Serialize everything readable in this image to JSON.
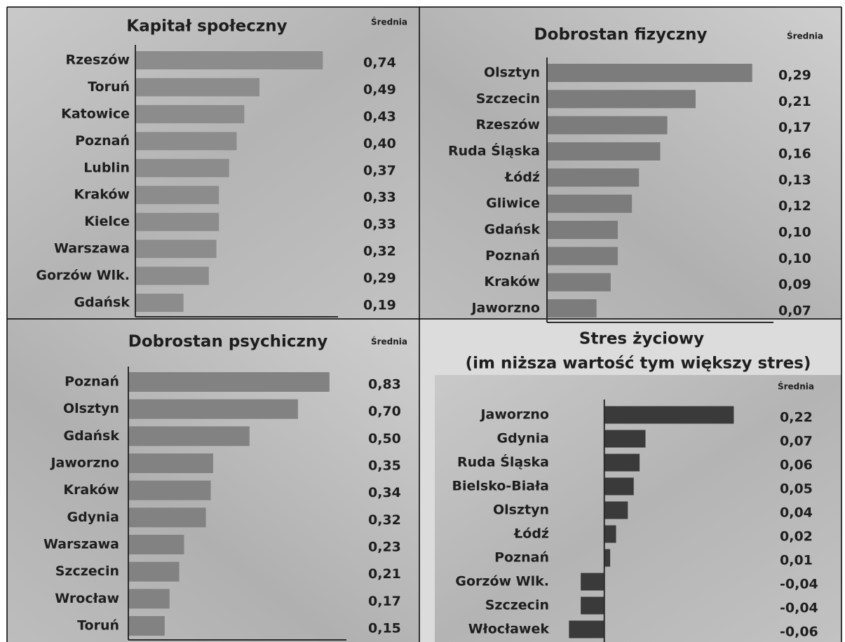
{
  "chart_data": [
    {
      "type": "bar",
      "title": "Kapitał społeczny",
      "value_header": "Średnia",
      "color": "#8c8c8c",
      "categories": [
        "Rzeszów",
        "Toruń",
        "Katowice",
        "Poznań",
        "Lublin",
        "Kraków",
        "Kielce",
        "Warszawa",
        "Gorzów Wlk.",
        "Gdańsk"
      ],
      "values": [
        0.74,
        0.49,
        0.43,
        0.4,
        0.37,
        0.33,
        0.33,
        0.32,
        0.29,
        0.19
      ],
      "value_labels": [
        "0,74",
        "0,49",
        "0,43",
        "0,40",
        "0,37",
        "0,33",
        "0,33",
        "0,32",
        "0,29",
        "0,19"
      ],
      "xlim": [
        0,
        0.8
      ]
    },
    {
      "type": "bar",
      "title": "Dobrostan fizyczny",
      "value_header": "Średnia",
      "color": "#7c7c7c",
      "categories": [
        "Olsztyn",
        "Szczecin",
        "Rzeszów",
        "Ruda Śląska",
        "Łódź",
        "Gliwice",
        "Gdańsk",
        "Poznań",
        "Kraków",
        "Jaworzno"
      ],
      "values": [
        0.29,
        0.21,
        0.17,
        0.16,
        0.13,
        0.12,
        0.1,
        0.1,
        0.09,
        0.07
      ],
      "value_labels": [
        "0,29",
        "0,21",
        "0,17",
        "0,16",
        "0,13",
        "0,12",
        "0,10",
        "0,10",
        "0,09",
        "0,07"
      ],
      "xlim": [
        0,
        0.32
      ]
    },
    {
      "type": "bar",
      "title": "Dobrostan psychiczny",
      "value_header": "Średnia",
      "color": "#828282",
      "categories": [
        "Poznań",
        "Olsztyn",
        "Gdańsk",
        "Jaworzno",
        "Kraków",
        "Gdynia",
        "Warszawa",
        "Szczecin",
        "Wrocław",
        "Toruń"
      ],
      "values": [
        0.83,
        0.7,
        0.5,
        0.35,
        0.34,
        0.32,
        0.23,
        0.21,
        0.17,
        0.15
      ],
      "value_labels": [
        "0,83",
        "0,70",
        "0,50",
        "0,35",
        "0,34",
        "0,32",
        "0,23",
        "0,21",
        "0,17",
        "0,15"
      ],
      "xlim": [
        0,
        0.9
      ]
    },
    {
      "type": "bar",
      "title": "Stres życiowy",
      "subtitle": "(im niższa wartość tym większy stres)",
      "value_header": "Średnia",
      "color": "#3a3a3a",
      "categories": [
        "Jaworzno",
        "Gdynia",
        "Ruda Śląska",
        "Bielsko-Biała",
        "Olsztyn",
        "Łódź",
        "Poznań",
        "Gorzów Wlk.",
        "Szczecin",
        "Włocławek"
      ],
      "values": [
        0.22,
        0.07,
        0.06,
        0.05,
        0.04,
        0.02,
        0.01,
        -0.04,
        -0.04,
        -0.06
      ],
      "value_labels": [
        "0,22",
        "0,07",
        "0,06",
        "0,05",
        "0,04",
        "0,02",
        "0,01",
        "-0,04",
        "-0,04",
        "-0,06"
      ],
      "xlim": [
        -0.12,
        0.26
      ]
    }
  ]
}
